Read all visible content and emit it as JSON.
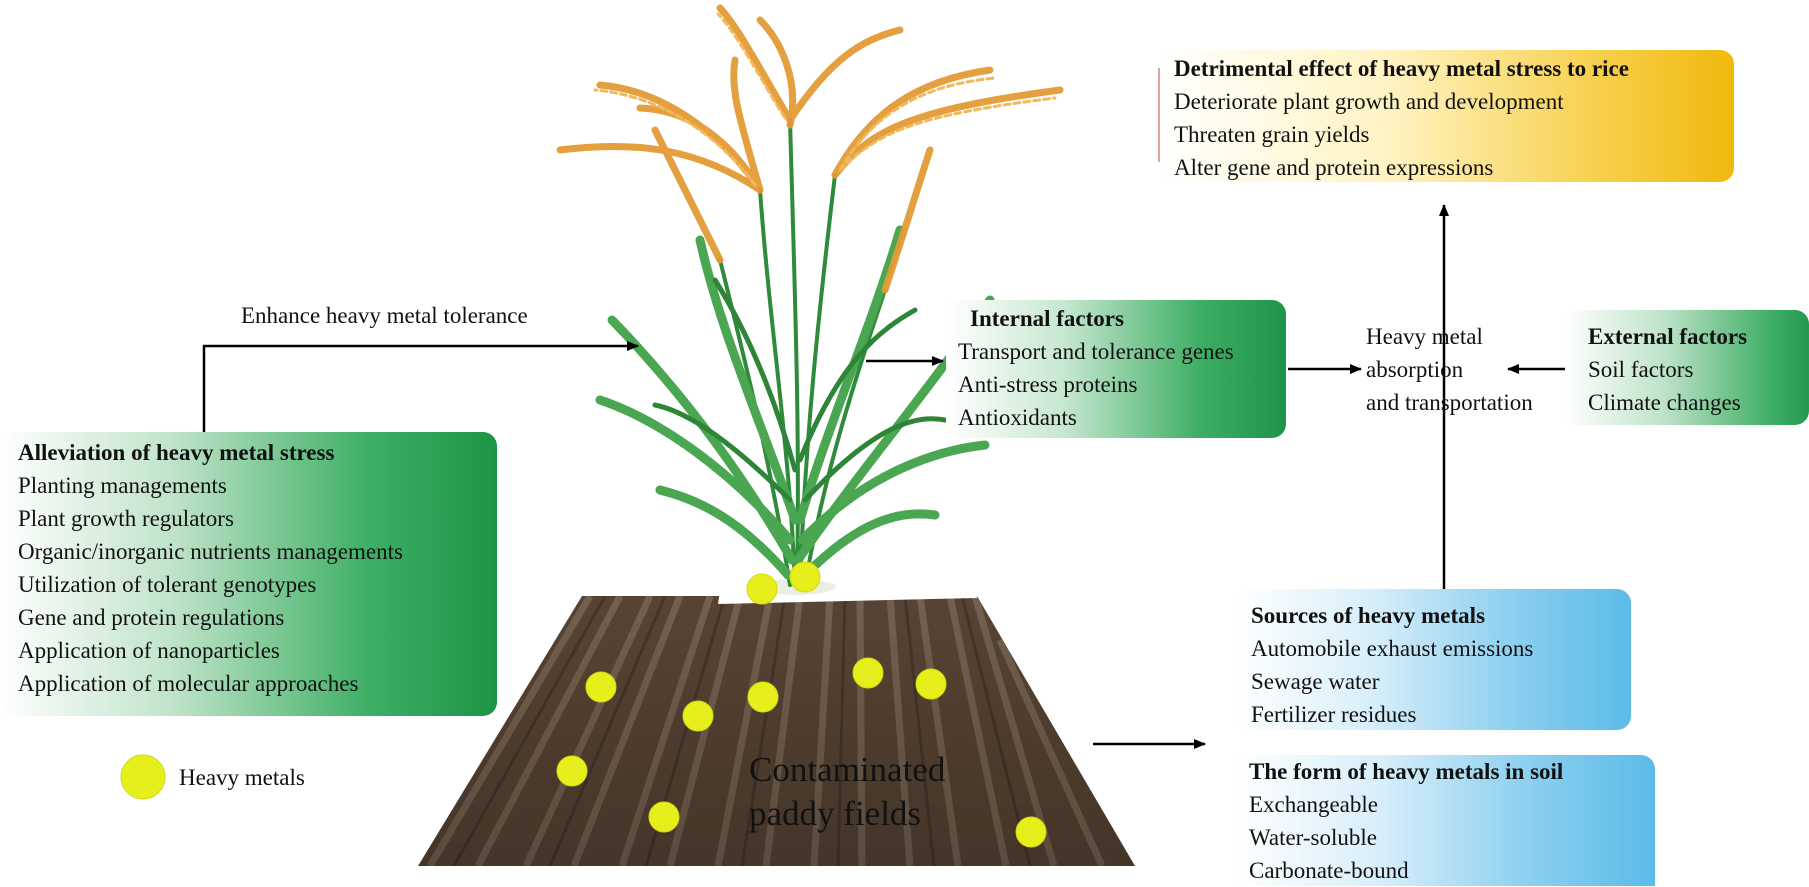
{
  "detrimental": {
    "title": "Detrimental effect of heavy metal stress to rice",
    "items": [
      "Deteriorate plant growth and development",
      "Threaten grain yields",
      "Alter gene and protein expressions"
    ]
  },
  "enhance_label": "Enhance heavy metal  tolerance",
  "internal": {
    "title": "Internal factors",
    "items": [
      "Transport and tolerance genes",
      "Anti-stress proteins",
      "Antioxidants"
    ]
  },
  "absorption": [
    "Heavy metal",
    "absorption",
    "and transportation"
  ],
  "external": {
    "title": "External factors",
    "items": [
      "Soil factors",
      "Climate changes"
    ]
  },
  "alleviation": {
    "title": "Alleviation of  heavy metal stress",
    "items": [
      "Planting managements",
      "Plant growth regulators",
      "Organic/inorganic nutrients managements",
      "Utilization of tolerant genotypes",
      "Gene and protein regulations",
      "Application of nanoparticles",
      "Application of molecular approaches"
    ]
  },
  "sources": {
    "title": "Sources of heavy metals",
    "items": [
      "Automobile exhaust emissions",
      "Sewage water",
      "Fertilizer residues"
    ]
  },
  "forms": {
    "title": "The form of heavy metals in soil",
    "items": [
      "Exchangeable",
      "Water-soluble",
      "Carbonate-bound"
    ]
  },
  "legend_label": "Heavy metals",
  "field_label": [
    "Contaminated",
    "paddy fields"
  ],
  "colors": {
    "heavy_metal_dot": "#e6ef1c",
    "soil": "#5a4634",
    "leaf": "#3f9b47",
    "grain": "#e8a33a"
  }
}
